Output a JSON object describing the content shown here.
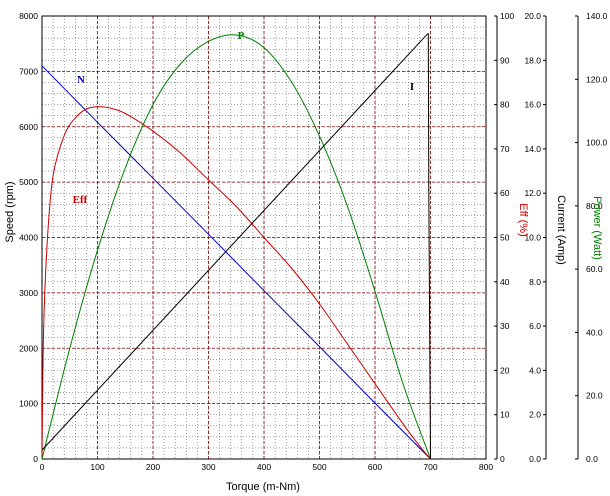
{
  "chart_data": {
    "type": "line",
    "title": "",
    "xlabel": "Torque (m-Nm)",
    "xlim": [
      0,
      800
    ],
    "xticks": [
      0,
      100,
      200,
      300,
      400,
      500,
      600,
      700,
      800
    ],
    "grid": true,
    "axes": {
      "speed": {
        "label": "Speed (rpm)",
        "range": [
          0,
          8000
        ],
        "ticks": [
          0,
          1000,
          2000,
          3000,
          4000,
          5000,
          6000,
          7000,
          8000
        ],
        "color": "#000000"
      },
      "eff": {
        "label": "Eff (%)",
        "range": [
          0,
          100
        ],
        "ticks": [
          0,
          10,
          20,
          30,
          40,
          50,
          60,
          70,
          80,
          90,
          100
        ],
        "color": "#cc0000"
      },
      "current": {
        "label": "Current (Amp)",
        "range": [
          0,
          20
        ],
        "ticks": [
          "0.0",
          "2.0",
          "4.0",
          "6.0",
          "8.0",
          "10.0",
          "12.0",
          "14.0",
          "16.0",
          "18.0",
          "20.0"
        ],
        "color": "#000000"
      },
      "power": {
        "label": "Power (Watt)",
        "range": [
          0,
          140
        ],
        "ticks": [
          "0.0",
          "20.0",
          "40.0",
          "60.0",
          "80.0",
          "100.0",
          "120.0",
          "140.0"
        ],
        "color": "#008000"
      }
    },
    "series": [
      {
        "name": "N",
        "axis": "speed",
        "color": "#0000cc",
        "x": [
          0,
          100,
          200,
          300,
          400,
          500,
          600,
          700
        ],
        "y": [
          7100,
          6080,
          5070,
          4060,
          3040,
          2030,
          1010,
          0
        ]
      },
      {
        "name": "Eff",
        "axis": "eff",
        "color": "#cc0000",
        "x": [
          0,
          3,
          10,
          20,
          40,
          60,
          80,
          100,
          120,
          150,
          200,
          250,
          300,
          350,
          400,
          450,
          500,
          550,
          600,
          650,
          680,
          700
        ],
        "y": [
          0,
          30,
          50,
          64,
          73,
          77,
          79,
          79.5,
          79.3,
          78,
          74,
          69,
          63,
          57,
          50,
          43,
          35,
          26,
          17,
          8,
          3,
          0
        ]
      },
      {
        "name": "P",
        "axis": "power",
        "color": "#008000",
        "x": [
          0,
          50,
          100,
          150,
          200,
          250,
          300,
          350,
          400,
          450,
          500,
          550,
          600,
          650,
          700
        ],
        "y": [
          0,
          35,
          66,
          92,
          112,
          125,
          132,
          134,
          130,
          119,
          102,
          80,
          53,
          24,
          0
        ]
      },
      {
        "name": "I",
        "axis": "current",
        "color": "#000000",
        "x": [
          0,
          695,
          696,
          697,
          700
        ],
        "y": [
          0.4,
          19.2,
          19.2,
          12.0,
          0
        ]
      }
    ]
  }
}
